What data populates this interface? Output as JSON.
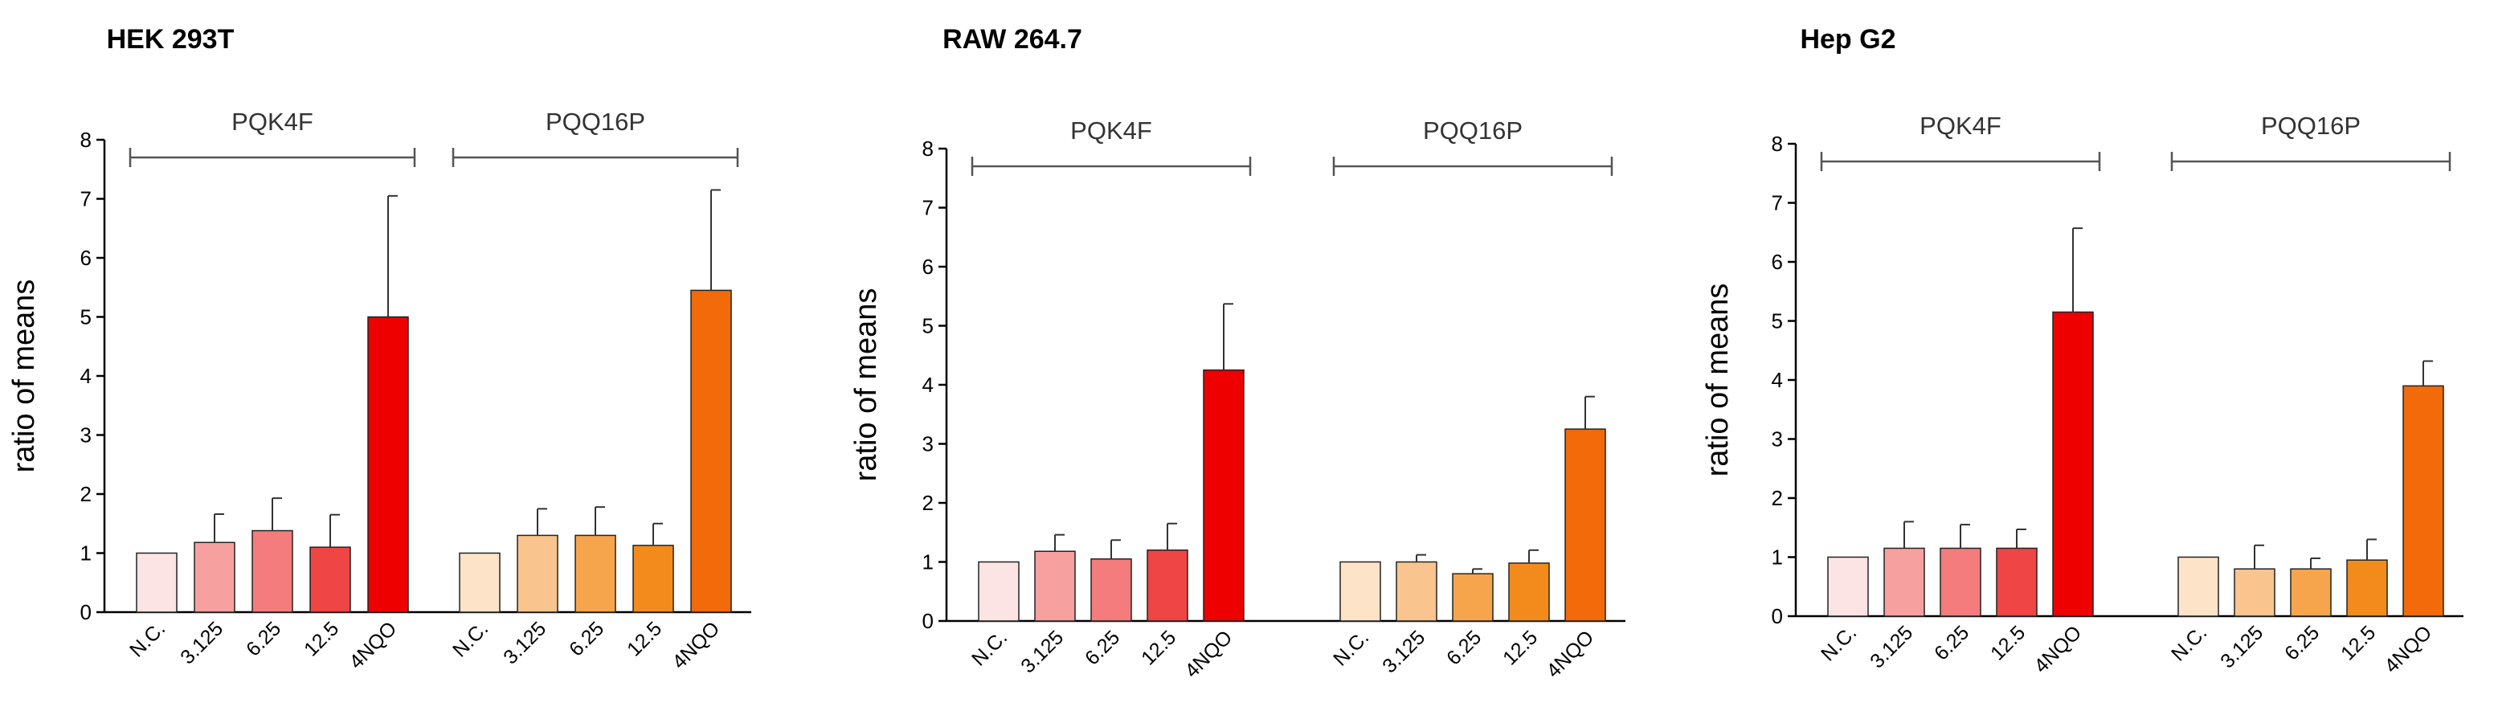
{
  "chart_data": [
    {
      "type": "bar",
      "title": "HEK 293T",
      "ylabel": "ratio of means",
      "ylim": [
        0,
        8
      ],
      "yticks": [
        0,
        1,
        2,
        3,
        4,
        5,
        6,
        7,
        8
      ],
      "categories": [
        "N.C.",
        "3.125",
        "6.25",
        "12.5",
        "4NQO",
        "N.C.",
        "3.125",
        "6.25",
        "12.5",
        "4NQO"
      ],
      "groups": [
        {
          "name": "PQK4F",
          "values": [
            1.0,
            1.18,
            1.38,
            1.1,
            5.0
          ],
          "errors": [
            0,
            0.48,
            0.55,
            0.55,
            2.05
          ],
          "colors": [
            "#fde4e4",
            "#f7a0a0",
            "#f47c7c",
            "#ef4545",
            "#ee0000"
          ]
        },
        {
          "name": "PQQ16P",
          "values": [
            1.0,
            1.3,
            1.3,
            1.13,
            5.45
          ],
          "errors": [
            0,
            0.45,
            0.48,
            0.37,
            1.7
          ],
          "colors": [
            "#fde3c8",
            "#f9c48d",
            "#f7a54d",
            "#f38b1c",
            "#f26a0a"
          ]
        }
      ]
    },
    {
      "type": "bar",
      "title": "RAW 264.7",
      "ylabel": "ratio of means",
      "ylim": [
        0,
        8
      ],
      "yticks": [
        0,
        1,
        2,
        3,
        4,
        5,
        6,
        7,
        8
      ],
      "categories": [
        "N.C.",
        "3.125",
        "6.25",
        "12.5",
        "4NQO",
        "N.C.",
        "3.125",
        "6.25",
        "12.5",
        "4NQO"
      ],
      "groups": [
        {
          "name": "PQK4F",
          "values": [
            1.0,
            1.18,
            1.05,
            1.2,
            4.25
          ],
          "errors": [
            0,
            0.28,
            0.32,
            0.45,
            1.12
          ],
          "colors": [
            "#fde4e4",
            "#f7a0a0",
            "#f47c7c",
            "#ef4545",
            "#ee0000"
          ]
        },
        {
          "name": "PQQ16P",
          "values": [
            1.0,
            1.0,
            0.8,
            0.98,
            3.25
          ],
          "errors": [
            0,
            0.12,
            0.08,
            0.22,
            0.55
          ],
          "colors": [
            "#fde3c8",
            "#f9c48d",
            "#f7a54d",
            "#f38b1c",
            "#f26a0a"
          ]
        }
      ]
    },
    {
      "type": "bar",
      "title": "Hep G2",
      "ylabel": "ratio of means",
      "ylim": [
        0,
        8
      ],
      "yticks": [
        0,
        1,
        2,
        3,
        4,
        5,
        6,
        7,
        8
      ],
      "categories": [
        "N.C.",
        "3.125",
        "6.25",
        "12.5",
        "4NQO",
        "N.C.",
        "3.125",
        "6.25",
        "12.5",
        "4NQO"
      ],
      "groups": [
        {
          "name": "PQK4F",
          "values": [
            1.0,
            1.15,
            1.15,
            1.15,
            5.15
          ],
          "errors": [
            0,
            0.45,
            0.4,
            0.32,
            1.42
          ],
          "colors": [
            "#fde4e4",
            "#f7a0a0",
            "#f47c7c",
            "#ef4545",
            "#ee0000"
          ]
        },
        {
          "name": "PQQ16P",
          "values": [
            1.0,
            0.8,
            0.8,
            0.95,
            3.9
          ],
          "errors": [
            0,
            0.4,
            0.18,
            0.35,
            0.42
          ],
          "colors": [
            "#fde3c8",
            "#f9c48d",
            "#f7a54d",
            "#f38b1c",
            "#f26a0a"
          ]
        }
      ]
    }
  ]
}
